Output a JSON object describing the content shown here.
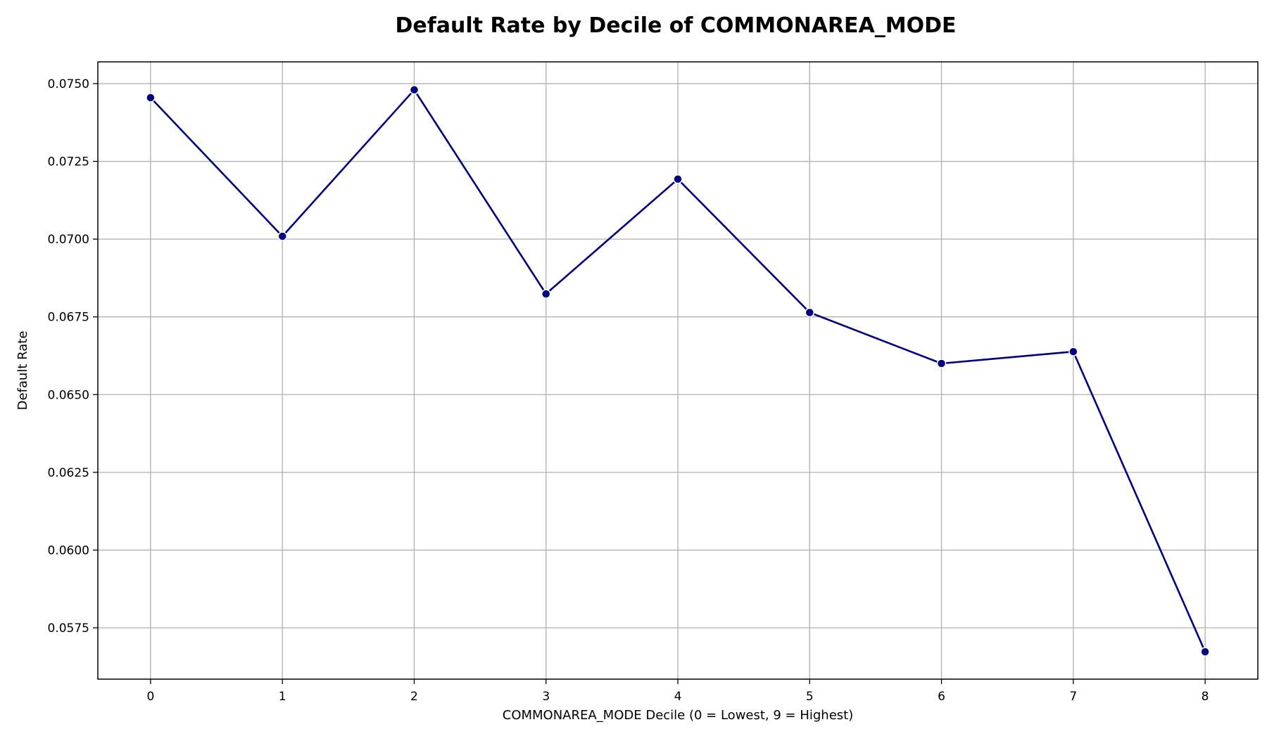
{
  "chart_data": {
    "type": "line",
    "title": "Default Rate by Decile of COMMONAREA_MODE",
    "xlabel": "COMMONAREA_MODE Decile (0 = Lowest, 9 = Highest)",
    "ylabel": "Default Rate",
    "x": [
      0,
      1,
      2,
      3,
      4,
      5,
      6,
      7,
      8
    ],
    "series": [
      {
        "values": [
          0.07455,
          0.07009,
          0.0748,
          0.06824,
          0.07193,
          0.06764,
          0.066,
          0.06638,
          0.05673
        ]
      }
    ],
    "xlim": [
      -0.4,
      8.4
    ],
    "ylim": [
      0.05585,
      0.0757
    ],
    "x_ticks": [
      "0",
      "1",
      "2",
      "3",
      "4",
      "5",
      "6",
      "7",
      "8"
    ],
    "y_ticks": [
      "0.0575",
      "0.0600",
      "0.0625",
      "0.0650",
      "0.0675",
      "0.0700",
      "0.0725",
      "0.0750"
    ],
    "grid": true,
    "line_color": "#000080",
    "marker_color": "#000080",
    "grid_color": "#b0b0b0"
  }
}
